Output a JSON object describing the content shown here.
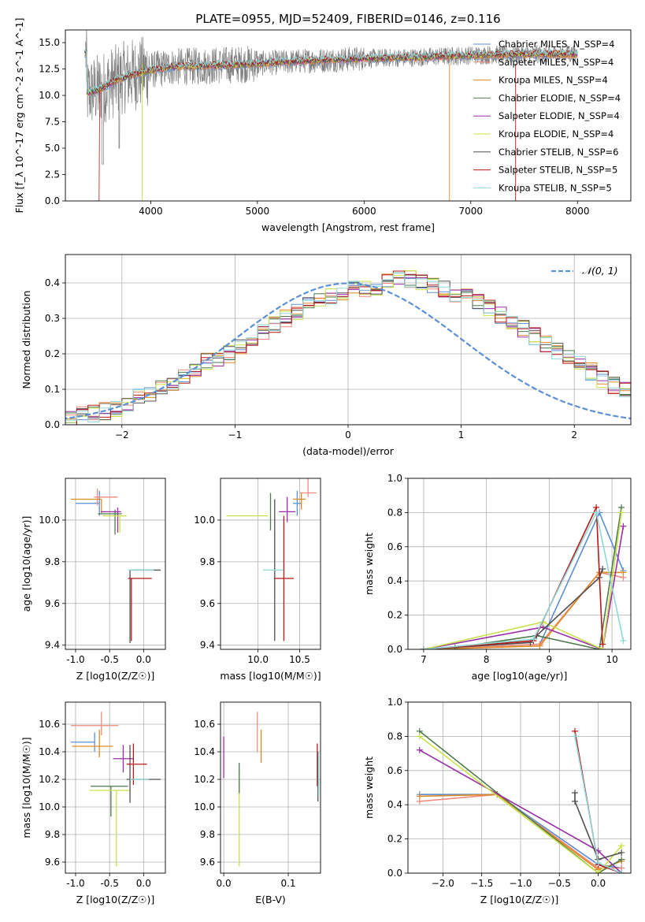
{
  "title": "PLATE=0955, MJD=52409, FIBERID=0146, z=0.116",
  "colors": {
    "Chabrier MILES": "#5b8fd6",
    "Salpeter MILES": "#f08a7a",
    "Kroupa MILES": "#e08a25",
    "Chabrier ELODIE": "#4f7a4f",
    "Salpeter ELODIE": "#9a2ea8",
    "Kroupa ELODIE": "#c9e04a",
    "Chabrier STELIB": "#505050",
    "Salpeter STELIB": "#b81818",
    "Kroupa STELIB": "#8fd8d8",
    "gray": "#808080",
    "normal": "#5b8fd6"
  },
  "chart_data": [
    {
      "type": "line",
      "name": "spectrum",
      "title": "PLATE=0955, MJD=52409, FIBERID=0146, z=0.116",
      "xlabel": "wavelength [Angstrom, rest frame]",
      "ylabel": "Flux [f_λ 10^-17 erg cm^-2 s^-1 A^-1]",
      "xlim": [
        3200,
        8500
      ],
      "ylim": [
        0,
        16.2
      ],
      "xticks": [
        4000,
        5000,
        6000,
        7000,
        8000
      ],
      "yticks": [
        0.0,
        2.5,
        5.0,
        7.5,
        10.0,
        12.5,
        15.0
      ],
      "grid": false,
      "legend_position": "upper right",
      "series": [
        {
          "name": "Chabrier MILES",
          "label": "Chabrier MILES, N_SSP=4"
        },
        {
          "name": "Salpeter MILES",
          "label": "Salpeter MILES, N_SSP=4"
        },
        {
          "name": "Kroupa MILES",
          "label": "Kroupa MILES, N_SSP=4"
        },
        {
          "name": "Chabrier ELODIE",
          "label": "Chabrier ELODIE, N_SSP=4"
        },
        {
          "name": "Salpeter ELODIE",
          "label": "Salpeter ELODIE, N_SSP=4"
        },
        {
          "name": "Kroupa ELODIE",
          "label": "Kroupa ELODIE, N_SSP=4"
        },
        {
          "name": "Chabrier STELIB",
          "label": "Chabrier STELIB, N_SSP=6"
        },
        {
          "name": "Salpeter STELIB",
          "label": "Salpeter STELIB, N_SSP=5"
        },
        {
          "name": "Kroupa STELIB",
          "label": "Kroupa STELIB, N_SSP=5"
        }
      ],
      "continuum": {
        "x": [
          3400,
          3500,
          3600,
          3700,
          3800,
          3900,
          4000,
          4200,
          4500,
          5000,
          5500,
          6000,
          6500,
          7000,
          7500,
          8000,
          8500
        ],
        "y": [
          10.2,
          10.5,
          11.0,
          11.5,
          11.9,
          12.1,
          12.4,
          12.7,
          12.8,
          13.0,
          13.3,
          13.5,
          13.6,
          13.8,
          13.9,
          13.9,
          14.0
        ]
      }
    },
    {
      "type": "step",
      "name": "residuals",
      "xlabel": "(data-model)/error",
      "ylabel": "Normed distribution",
      "xlim": [
        -2.5,
        2.5
      ],
      "ylim": [
        0,
        0.48
      ],
      "xticks": [
        -2,
        -1,
        0,
        1,
        2
      ],
      "yticks": [
        0.0,
        0.1,
        0.2,
        0.3,
        0.4
      ],
      "grid": true,
      "legend_label": "𝒩(0, 1)",
      "legend_position": "upper right",
      "bin_width": 0.1,
      "bin_start": -2.6,
      "base": [
        0.018,
        0.022,
        0.026,
        0.032,
        0.038,
        0.045,
        0.06,
        0.08,
        0.09,
        0.1,
        0.12,
        0.14,
        0.16,
        0.18,
        0.19,
        0.2,
        0.22,
        0.24,
        0.26,
        0.28,
        0.3,
        0.32,
        0.34,
        0.35,
        0.36,
        0.37,
        0.38,
        0.38,
        0.39,
        0.4,
        0.41,
        0.41,
        0.4,
        0.39,
        0.38,
        0.37,
        0.36,
        0.35,
        0.33,
        0.31,
        0.29,
        0.27,
        0.25,
        0.23,
        0.21,
        0.19,
        0.17,
        0.15,
        0.13,
        0.11,
        0.1,
        0.08,
        0.07,
        0.055,
        0.045,
        0.035,
        0.028
      ]
    },
    {
      "type": "errorbar",
      "name": "age-vs-Z",
      "xlabel": "Z [log10(Z/Z☉)]",
      "ylabel": "age  [log10(age/yr)]",
      "xlim": [
        -1.15,
        0.32
      ],
      "ylim": [
        9.38,
        10.2
      ],
      "xticks": [
        -1.0,
        -0.5,
        0.0
      ],
      "yticks": [
        9.4,
        9.6,
        9.8,
        10.0
      ],
      "grid": true,
      "points": [
        {
          "s": "Chabrier MILES",
          "x": -0.65,
          "y": 10.08,
          "xe": [
            0.35,
            0.0
          ],
          "ye": [
            0.06,
            0.06
          ]
        },
        {
          "s": "Salpeter MILES",
          "x": -0.68,
          "y": 10.11,
          "xe": [
            0.05,
            0.3
          ],
          "ye": [
            0.04,
            0.04
          ]
        },
        {
          "s": "Kroupa MILES",
          "x": -0.62,
          "y": 10.1,
          "xe": [
            0.45,
            0.0
          ],
          "ye": [
            0.07,
            0.0
          ]
        },
        {
          "s": "Chabrier ELODIE",
          "x": -0.42,
          "y": 10.03,
          "xe": [
            0.25,
            0.1
          ],
          "ye": [
            0.1,
            0.02
          ]
        },
        {
          "s": "Salpeter ELODIE",
          "x": -0.38,
          "y": 10.04,
          "xe": [
            0.25,
            0.05
          ],
          "ye": [
            0.1,
            0.02
          ]
        },
        {
          "s": "Kroupa ELODIE",
          "x": -0.35,
          "y": 10.02,
          "xe": [
            0.25,
            0.1
          ],
          "ye": [
            0.08,
            0.0
          ]
        },
        {
          "s": "Chabrier STELIB",
          "x": -0.2,
          "y": 9.76,
          "xe": [
            0.0,
            0.45
          ],
          "ye": [
            0.35,
            0.0
          ]
        },
        {
          "s": "Salpeter STELIB",
          "x": -0.18,
          "y": 9.72,
          "xe": [
            0.05,
            0.3
          ],
          "ye": [
            0.3,
            0.0
          ]
        },
        {
          "s": "Kroupa STELIB",
          "x": -0.15,
          "y": 9.76,
          "xe": [
            0.08,
            0.3
          ],
          "ye": [
            0.0,
            0.0
          ]
        }
      ]
    },
    {
      "type": "errorbar",
      "name": "age-vs-mass",
      "xlabel": "mass [log10(M/M☉)]",
      "ylabel": "",
      "xlim": [
        9.55,
        10.75
      ],
      "ylim": [
        9.38,
        10.2
      ],
      "xticks": [
        10.0,
        10.5
      ],
      "yticks": [
        9.4,
        9.6,
        9.8,
        10.0
      ],
      "grid": true,
      "points": [
        {
          "s": "Chabrier MILES",
          "x": 10.47,
          "y": 10.08,
          "xe": [
            0.05,
            0.05
          ],
          "ye": [
            0.06,
            0.06
          ]
        },
        {
          "s": "Salpeter MILES",
          "x": 10.6,
          "y": 10.13,
          "xe": [
            0.1,
            0.1
          ],
          "ye": [
            0.02,
            0.1
          ]
        },
        {
          "s": "Kroupa MILES",
          "x": 10.52,
          "y": 10.1,
          "xe": [
            0.1,
            0.05
          ],
          "ye": [
            0.05,
            0.03
          ]
        },
        {
          "s": "Chabrier ELODIE",
          "x": 10.15,
          "y": 10.03,
          "xe": [
            0.0,
            0.0
          ],
          "ye": [
            0.08,
            0.1
          ]
        },
        {
          "s": "Salpeter ELODIE",
          "x": 10.35,
          "y": 10.04,
          "xe": [
            0.1,
            0.1
          ],
          "ye": [
            0.05,
            0.07
          ]
        },
        {
          "s": "Kroupa ELODIE",
          "x": 10.12,
          "y": 10.02,
          "xe": [
            0.5,
            0.0
          ],
          "ye": [
            0.0,
            0.0
          ]
        },
        {
          "s": "Chabrier STELIB",
          "x": 10.2,
          "y": 9.76,
          "xe": [
            0.0,
            0.0
          ],
          "ye": [
            0.34,
            0.34
          ]
        },
        {
          "s": "Salpeter STELIB",
          "x": 10.31,
          "y": 9.72,
          "xe": [
            0.12,
            0.12
          ],
          "ye": [
            0.3,
            0.3
          ]
        },
        {
          "s": "Kroupa STELIB",
          "x": 10.18,
          "y": 9.76,
          "xe": [
            0.12,
            0.12
          ],
          "ye": [
            0.0,
            0.0
          ]
        }
      ]
    },
    {
      "type": "line",
      "name": "massweight-vs-age",
      "xlabel": "age  [log10(age/yr)]",
      "ylabel": "mass weight",
      "xlim": [
        6.75,
        10.3
      ],
      "ylim": [
        0,
        1.0
      ],
      "xticks": [
        7,
        8,
        9,
        10
      ],
      "yticks": [
        0.0,
        0.2,
        0.4,
        0.6,
        0.8,
        1.0
      ],
      "grid": true,
      "series": [
        {
          "s": "Chabrier MILES",
          "x": [
            7.0,
            8.85,
            9.8,
            10.18
          ],
          "y": [
            0.0,
            0.03,
            0.8,
            0.46
          ]
        },
        {
          "s": "Salpeter MILES",
          "x": [
            7.0,
            8.85,
            9.8,
            10.18
          ],
          "y": [
            0.0,
            0.03,
            0.45,
            0.42
          ]
        },
        {
          "s": "Kroupa MILES",
          "x": [
            7.0,
            8.85,
            9.8,
            10.18
          ],
          "y": [
            0.0,
            0.02,
            0.45,
            0.45
          ]
        },
        {
          "s": "Chabrier ELODIE",
          "x": [
            7.5,
            8.8,
            9.8,
            10.15
          ],
          "y": [
            0.01,
            0.08,
            0.0,
            0.83
          ]
        },
        {
          "s": "Salpeter ELODIE",
          "x": [
            7.0,
            8.9,
            9.85,
            10.18
          ],
          "y": [
            0.0,
            0.13,
            0.0,
            0.72
          ]
        },
        {
          "s": "Kroupa ELODIE",
          "x": [
            7.0,
            8.9,
            9.85,
            10.15
          ],
          "y": [
            0.0,
            0.16,
            0.0,
            0.8
          ]
        },
        {
          "s": "Chabrier STELIB",
          "x": [
            7.0,
            8.7,
            8.8,
            9.8,
            9.85
          ],
          "y": [
            0.0,
            0.04,
            0.08,
            0.42,
            0.47
          ]
        },
        {
          "s": "Salpeter STELIB",
          "x": [
            7.0,
            8.75,
            9.75,
            9.85
          ],
          "y": [
            0.0,
            0.05,
            0.83,
            0.03
          ]
        },
        {
          "s": "Kroupa STELIB",
          "x": [
            7.0,
            8.75,
            9.75,
            10.18
          ],
          "y": [
            0.0,
            0.06,
            0.8,
            0.05
          ]
        }
      ]
    },
    {
      "type": "errorbar",
      "name": "mass-vs-Z",
      "xlabel": "Z [log10(Z/Z☉)]",
      "ylabel": "mass [log10(M/M☉)]",
      "xlim": [
        -1.15,
        0.32
      ],
      "ylim": [
        9.52,
        10.76
      ],
      "xticks": [
        -1.0,
        -0.5,
        0.0
      ],
      "yticks": [
        9.6,
        9.8,
        10.0,
        10.2,
        10.4,
        10.6
      ],
      "grid": true,
      "points": [
        {
          "s": "Chabrier MILES",
          "x": -0.72,
          "y": 10.47,
          "xe": [
            0.35,
            0.0
          ],
          "ye": [
            0.07,
            0.07
          ]
        },
        {
          "s": "Salpeter MILES",
          "x": -0.62,
          "y": 10.59,
          "xe": [
            0.45,
            0.25
          ],
          "ye": [
            0.07,
            0.1
          ]
        },
        {
          "s": "Kroupa MILES",
          "x": -0.65,
          "y": 10.44,
          "xe": [
            0.4,
            0.2
          ],
          "ye": [
            0.08,
            0.12
          ]
        },
        {
          "s": "Chabrier ELODIE",
          "x": -0.48,
          "y": 10.15,
          "xe": [
            0.3,
            0.25
          ],
          "ye": [
            0.22,
            0.0
          ]
        },
        {
          "s": "Salpeter ELODIE",
          "x": -0.3,
          "y": 10.35,
          "xe": [
            0.15,
            0.15
          ],
          "ye": [
            0.1,
            0.1
          ]
        },
        {
          "s": "Kroupa ELODIE",
          "x": -0.4,
          "y": 10.12,
          "xe": [
            0.4,
            0.2
          ],
          "ye": [
            0.55,
            0.0
          ]
        },
        {
          "s": "Chabrier STELIB",
          "x": -0.2,
          "y": 10.2,
          "xe": [
            0.05,
            0.45
          ],
          "ye": [
            0.17,
            0.25
          ]
        },
        {
          "s": "Salpeter STELIB",
          "x": -0.15,
          "y": 10.31,
          "xe": [
            0.1,
            0.2
          ],
          "ye": [
            0.15,
            0.15
          ]
        },
        {
          "s": "Kroupa STELIB",
          "x": -0.12,
          "y": 10.2,
          "xe": [
            0.08,
            0.2
          ],
          "ye": [
            0.0,
            0.0
          ]
        }
      ]
    },
    {
      "type": "errorbar",
      "name": "mass-vs-EBV",
      "xlabel": "E(B-V)",
      "ylabel": "",
      "xlim": [
        -0.005,
        0.15
      ],
      "ylim": [
        9.52,
        10.76
      ],
      "xticks": [
        0.0,
        0.1
      ],
      "yticks": [
        9.6,
        9.8,
        10.0,
        10.2,
        10.4,
        10.6
      ],
      "grid": true,
      "points": [
        {
          "s": "Salpeter ELODIE",
          "x": 0.0,
          "y": 10.35,
          "ye": [
            0.14,
            0.16
          ]
        },
        {
          "s": "Kroupa ELODIE",
          "x": 0.024,
          "y": 10.12,
          "ye": [
            0.55,
            0.15
          ]
        },
        {
          "s": "Chabrier ELODIE",
          "x": 0.024,
          "y": 10.2,
          "ye": [
            0.1,
            0.12
          ]
        },
        {
          "s": "Salpeter MILES",
          "x": 0.052,
          "y": 10.54,
          "ye": [
            0.14,
            0.15
          ]
        },
        {
          "s": "Kroupa MILES",
          "x": 0.058,
          "y": 10.44,
          "ye": [
            0.12,
            0.12
          ]
        },
        {
          "s": "Salpeter STELIB",
          "x": 0.145,
          "y": 10.31,
          "ye": [
            0.16,
            0.15
          ]
        },
        {
          "s": "Chabrier STELIB",
          "x": 0.146,
          "y": 10.2,
          "ye": [
            0.16,
            0.2
          ]
        },
        {
          "s": "Kroupa STELIB",
          "x": 0.147,
          "y": 10.2,
          "ye": [
            0.12,
            0.2
          ]
        }
      ]
    },
    {
      "type": "line",
      "name": "massweight-vs-Z",
      "xlabel": "Z [log10(Z/Z☉)]",
      "ylabel": "mass weight",
      "xlim": [
        -2.45,
        0.42
      ],
      "ylim": [
        0,
        1.0
      ],
      "xticks": [
        -2.0,
        -1.5,
        -1.0,
        -0.5,
        0.0
      ],
      "yticks": [
        0.0,
        0.2,
        0.4,
        0.6,
        0.8,
        1.0
      ],
      "grid": true,
      "series": [
        {
          "s": "Chabrier MILES",
          "x": [
            -2.3,
            -1.3,
            0.0,
            0.3
          ],
          "y": [
            0.46,
            0.46,
            0.05,
            0.03
          ]
        },
        {
          "s": "Salpeter MILES",
          "x": [
            -2.3,
            -1.3,
            0.0,
            0.3
          ],
          "y": [
            0.42,
            0.46,
            0.03,
            0.03
          ]
        },
        {
          "s": "Kroupa MILES",
          "x": [
            -2.3,
            -1.3,
            0.0,
            0.3
          ],
          "y": [
            0.45,
            0.46,
            0.02,
            0.07
          ]
        },
        {
          "s": "Chabrier ELODIE",
          "x": [
            -2.3,
            0.0,
            0.3
          ],
          "y": [
            0.83,
            0.0,
            0.08
          ]
        },
        {
          "s": "Salpeter ELODIE",
          "x": [
            -2.3,
            0.0,
            0.3
          ],
          "y": [
            0.72,
            0.13,
            0.0
          ]
        },
        {
          "s": "Kroupa ELODIE",
          "x": [
            -2.3,
            0.0,
            0.3
          ],
          "y": [
            0.8,
            0.0,
            0.16
          ]
        },
        {
          "s": "Chabrier STELIB",
          "x": [
            -0.3,
            -0.3,
            0.0,
            0.3
          ],
          "y": [
            0.47,
            0.42,
            0.08,
            0.12
          ]
        },
        {
          "s": "Salpeter STELIB",
          "x": [
            -0.3,
            0.0,
            0.3
          ],
          "y": [
            0.83,
            0.05,
            0.0
          ]
        },
        {
          "s": "Kroupa STELIB",
          "x": [
            -0.3,
            0.0,
            0.3
          ],
          "y": [
            0.8,
            0.06,
            0.0
          ]
        }
      ]
    }
  ]
}
